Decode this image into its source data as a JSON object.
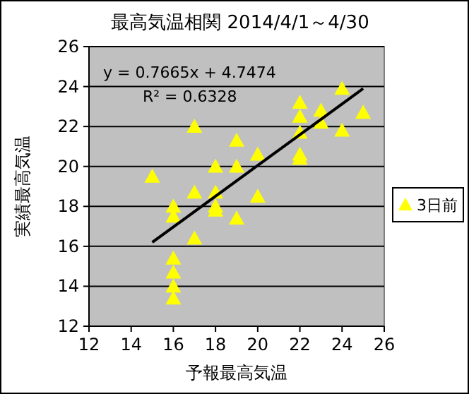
{
  "chart_data": {
    "type": "scatter",
    "title": "最高気温相関 2014/4/1～4/30",
    "xlabel": "予報最高気温",
    "ylabel": "実績最高気温",
    "xlim": [
      12,
      26
    ],
    "xticks": [
      12,
      14,
      16,
      18,
      20,
      22,
      24,
      26
    ],
    "ylim": [
      12,
      26
    ],
    "yticks": [
      12,
      14,
      16,
      18,
      20,
      22,
      24,
      26
    ],
    "grid": "y",
    "legend": "right",
    "annotations": [
      "y = 0.7665x + 4.7474",
      "R² = 0.6328"
    ],
    "series": [
      {
        "name": "3日前",
        "marker": "triangle",
        "color": "#ffff00",
        "x": [
          15,
          16,
          16,
          16,
          16,
          16,
          16,
          17,
          17,
          17,
          18,
          18,
          18,
          18,
          19,
          19,
          19,
          20,
          20,
          22,
          22,
          22,
          22,
          22,
          23,
          23,
          24,
          24,
          25
        ],
        "values": [
          19.5,
          18.0,
          17.5,
          15.4,
          14.7,
          14.0,
          13.4,
          22.0,
          18.7,
          16.4,
          20.0,
          18.7,
          18.0,
          17.8,
          21.3,
          20.0,
          17.4,
          20.6,
          18.5,
          23.2,
          22.5,
          21.7,
          20.6,
          20.4,
          22.8,
          22.2,
          23.9,
          21.8,
          22.7
        ]
      },
      {
        "type": "line",
        "marker": "none",
        "color": "#000000",
        "x": [
          15,
          25
        ],
        "values": [
          16.2,
          23.9
        ]
      }
    ]
  }
}
